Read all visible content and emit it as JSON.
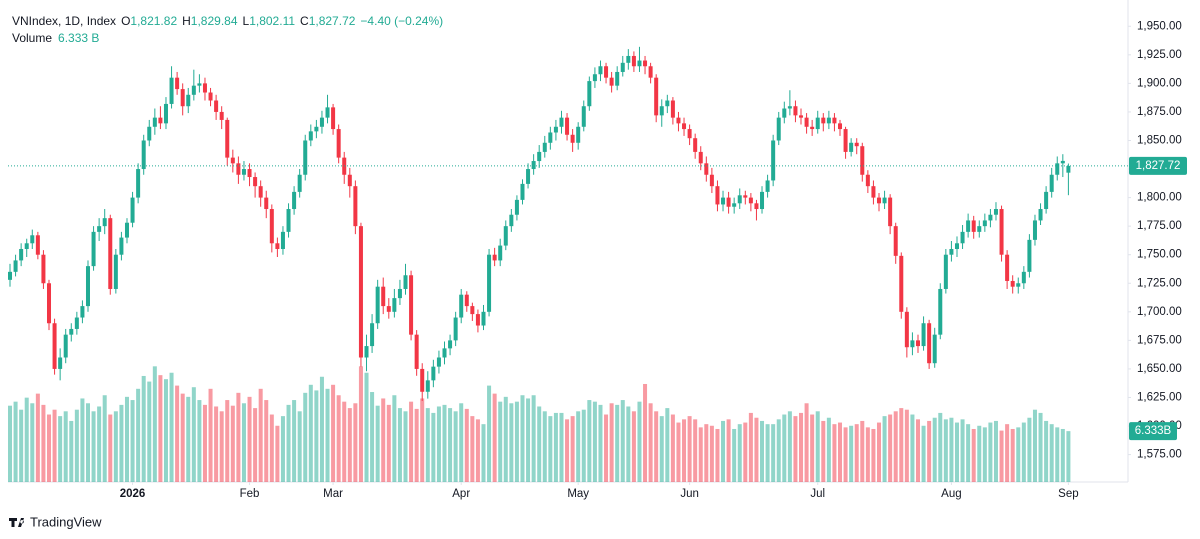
{
  "chart_data": {
    "type": "candlestick",
    "title": "VNIndex, 1D, Index",
    "ohlc_keys": [
      "O",
      "H",
      "L",
      "C"
    ],
    "last_labels": [
      "1,821.82",
      "1,829.84",
      "1,802.11",
      "1,827.72"
    ],
    "change_label": "−4.40 (−0.24%)",
    "volume_title": "Volume",
    "volume_value_label": "6.333 B",
    "price_badge": "1,827.72",
    "volume_badge": "6.333B",
    "brand": "TradingView",
    "up_color": "#22ab94",
    "down_color": "#f23645",
    "grid": false,
    "ylim": [
      1551,
      1973
    ],
    "yticks": [
      {
        "value": 1575,
        "label": "1,575.00"
      },
      {
        "value": 1600,
        "label": "1,600.00"
      },
      {
        "value": 1625,
        "label": "1,625.00"
      },
      {
        "value": 1650,
        "label": "1,650.00"
      },
      {
        "value": 1675,
        "label": "1,675.00"
      },
      {
        "value": 1700,
        "label": "1,700.00"
      },
      {
        "value": 1725,
        "label": "1,725.00"
      },
      {
        "value": 1750,
        "label": "1,750.00"
      },
      {
        "value": 1775,
        "label": "1,775.00"
      },
      {
        "value": 1800,
        "label": "1,800.00"
      },
      {
        "value": 1825,
        "label": "1,825.00"
      },
      {
        "value": 1850,
        "label": "1,850.00"
      },
      {
        "value": 1875,
        "label": "1,875.00"
      },
      {
        "value": 1900,
        "label": "1,900.00"
      },
      {
        "value": 1925,
        "label": "1,925.00"
      },
      {
        "value": 1950,
        "label": "1,950.00"
      }
    ],
    "xlim": [
      -0.36,
      200.7
    ],
    "xticks": [
      {
        "value": 22,
        "label": "2026"
      },
      {
        "value": 43,
        "label": "Feb"
      },
      {
        "value": 58,
        "label": "Mar"
      },
      {
        "value": 81,
        "label": "Apr"
      },
      {
        "value": 102,
        "label": "May"
      },
      {
        "value": 122,
        "label": "Jun"
      },
      {
        "value": 145,
        "label": "Jul"
      },
      {
        "value": 169,
        "label": "Aug"
      },
      {
        "value": 190,
        "label": "Sep"
      }
    ],
    "volume_lim": [
      0,
      60
    ],
    "candles": [
      [
        1728,
        1742,
        1722,
        1735
      ],
      [
        1735,
        1750,
        1731,
        1745
      ],
      [
        1745,
        1760,
        1740,
        1755
      ],
      [
        1755,
        1764,
        1748,
        1760
      ],
      [
        1760,
        1772,
        1755,
        1767
      ],
      [
        1767,
        1770,
        1746,
        1750
      ],
      [
        1750,
        1754,
        1720,
        1725
      ],
      [
        1725,
        1728,
        1684,
        1690
      ],
      [
        1690,
        1694,
        1645,
        1650
      ],
      [
        1650,
        1668,
        1640,
        1660
      ],
      [
        1660,
        1685,
        1655,
        1680
      ],
      [
        1680,
        1690,
        1674,
        1685
      ],
      [
        1685,
        1700,
        1680,
        1695
      ],
      [
        1695,
        1710,
        1690,
        1705
      ],
      [
        1705,
        1745,
        1700,
        1740
      ],
      [
        1740,
        1775,
        1736,
        1770
      ],
      [
        1770,
        1782,
        1762,
        1775
      ],
      [
        1775,
        1790,
        1768,
        1782
      ],
      [
        1782,
        1785,
        1715,
        1720
      ],
      [
        1720,
        1755,
        1716,
        1750
      ],
      [
        1750,
        1770,
        1745,
        1765
      ],
      [
        1765,
        1782,
        1760,
        1778
      ],
      [
        1778,
        1805,
        1774,
        1800
      ],
      [
        1800,
        1830,
        1795,
        1825
      ],
      [
        1825,
        1855,
        1820,
        1850
      ],
      [
        1850,
        1868,
        1845,
        1862
      ],
      [
        1862,
        1878,
        1855,
        1870
      ],
      [
        1870,
        1880,
        1860,
        1865
      ],
      [
        1865,
        1888,
        1860,
        1882
      ],
      [
        1882,
        1915,
        1878,
        1905
      ],
      [
        1905,
        1910,
        1890,
        1895
      ],
      [
        1895,
        1900,
        1872,
        1880
      ],
      [
        1880,
        1896,
        1874,
        1890
      ],
      [
        1890,
        1912,
        1885,
        1898
      ],
      [
        1898,
        1908,
        1892,
        1900
      ],
      [
        1900,
        1905,
        1885,
        1892
      ],
      [
        1892,
        1896,
        1880,
        1885
      ],
      [
        1885,
        1890,
        1868,
        1875
      ],
      [
        1875,
        1880,
        1860,
        1868
      ],
      [
        1868,
        1870,
        1828,
        1835
      ],
      [
        1835,
        1842,
        1822,
        1830
      ],
      [
        1830,
        1836,
        1812,
        1820
      ],
      [
        1820,
        1832,
        1815,
        1825
      ],
      [
        1825,
        1830,
        1810,
        1818
      ],
      [
        1818,
        1822,
        1800,
        1810
      ],
      [
        1810,
        1815,
        1792,
        1800
      ],
      [
        1800,
        1806,
        1782,
        1790
      ],
      [
        1790,
        1794,
        1752,
        1760
      ],
      [
        1760,
        1765,
        1748,
        1755
      ],
      [
        1755,
        1775,
        1750,
        1770
      ],
      [
        1770,
        1795,
        1765,
        1790
      ],
      [
        1790,
        1810,
        1785,
        1805
      ],
      [
        1805,
        1825,
        1800,
        1820
      ],
      [
        1820,
        1855,
        1815,
        1850
      ],
      [
        1850,
        1864,
        1845,
        1858
      ],
      [
        1858,
        1868,
        1852,
        1862
      ],
      [
        1862,
        1876,
        1856,
        1870
      ],
      [
        1870,
        1890,
        1865,
        1879
      ],
      [
        1879,
        1882,
        1855,
        1860
      ],
      [
        1860,
        1864,
        1830,
        1835
      ],
      [
        1835,
        1840,
        1812,
        1820
      ],
      [
        1820,
        1826,
        1800,
        1810
      ],
      [
        1810,
        1815,
        1768,
        1775
      ],
      [
        1775,
        1778,
        1652,
        1660
      ],
      [
        1660,
        1680,
        1648,
        1670
      ],
      [
        1670,
        1698,
        1664,
        1690
      ],
      [
        1690,
        1728,
        1685,
        1722
      ],
      [
        1722,
        1730,
        1698,
        1705
      ],
      [
        1705,
        1712,
        1694,
        1700
      ],
      [
        1700,
        1720,
        1695,
        1712
      ],
      [
        1712,
        1728,
        1706,
        1720
      ],
      [
        1720,
        1742,
        1715,
        1732
      ],
      [
        1732,
        1736,
        1675,
        1680
      ],
      [
        1680,
        1684,
        1644,
        1650
      ],
      [
        1650,
        1655,
        1622,
        1630
      ],
      [
        1630,
        1648,
        1624,
        1640
      ],
      [
        1640,
        1658,
        1634,
        1652
      ],
      [
        1652,
        1666,
        1646,
        1660
      ],
      [
        1660,
        1674,
        1654,
        1668
      ],
      [
        1668,
        1680,
        1662,
        1675
      ],
      [
        1675,
        1700,
        1670,
        1695
      ],
      [
        1695,
        1720,
        1690,
        1715
      ],
      [
        1715,
        1718,
        1700,
        1705
      ],
      [
        1705,
        1708,
        1692,
        1698
      ],
      [
        1698,
        1702,
        1682,
        1688
      ],
      [
        1688,
        1706,
        1684,
        1700
      ],
      [
        1700,
        1755,
        1696,
        1750
      ],
      [
        1750,
        1756,
        1740,
        1745
      ],
      [
        1745,
        1764,
        1740,
        1758
      ],
      [
        1758,
        1780,
        1754,
        1775
      ],
      [
        1775,
        1790,
        1770,
        1785
      ],
      [
        1785,
        1802,
        1780,
        1798
      ],
      [
        1798,
        1816,
        1794,
        1812
      ],
      [
        1812,
        1830,
        1808,
        1825
      ],
      [
        1825,
        1838,
        1820,
        1832
      ],
      [
        1832,
        1846,
        1826,
        1840
      ],
      [
        1840,
        1854,
        1835,
        1848
      ],
      [
        1848,
        1862,
        1842,
        1857
      ],
      [
        1857,
        1868,
        1850,
        1862
      ],
      [
        1862,
        1876,
        1856,
        1870
      ],
      [
        1870,
        1874,
        1850,
        1855
      ],
      [
        1855,
        1860,
        1840,
        1848
      ],
      [
        1848,
        1866,
        1842,
        1862
      ],
      [
        1862,
        1885,
        1858,
        1880
      ],
      [
        1880,
        1906,
        1876,
        1902
      ],
      [
        1902,
        1914,
        1896,
        1908
      ],
      [
        1908,
        1920,
        1902,
        1915
      ],
      [
        1915,
        1918,
        1900,
        1905
      ],
      [
        1905,
        1910,
        1892,
        1898
      ],
      [
        1898,
        1915,
        1894,
        1910
      ],
      [
        1910,
        1924,
        1906,
        1918
      ],
      [
        1918,
        1930,
        1912,
        1924
      ],
      [
        1924,
        1928,
        1910,
        1915
      ],
      [
        1915,
        1932,
        1910,
        1920
      ],
      [
        1920,
        1924,
        1908,
        1915
      ],
      [
        1915,
        1918,
        1900,
        1905
      ],
      [
        1905,
        1908,
        1866,
        1872
      ],
      [
        1872,
        1886,
        1862,
        1880
      ],
      [
        1880,
        1890,
        1874,
        1885
      ],
      [
        1885,
        1888,
        1864,
        1870
      ],
      [
        1870,
        1875,
        1858,
        1865
      ],
      [
        1865,
        1870,
        1854,
        1860
      ],
      [
        1860,
        1864,
        1846,
        1852
      ],
      [
        1852,
        1856,
        1834,
        1840
      ],
      [
        1840,
        1845,
        1824,
        1830
      ],
      [
        1830,
        1836,
        1814,
        1820
      ],
      [
        1820,
        1826,
        1804,
        1810
      ],
      [
        1810,
        1815,
        1788,
        1794
      ],
      [
        1794,
        1806,
        1788,
        1800
      ],
      [
        1800,
        1805,
        1786,
        1792
      ],
      [
        1792,
        1800,
        1786,
        1795
      ],
      [
        1795,
        1808,
        1790,
        1802
      ],
      [
        1802,
        1806,
        1794,
        1800
      ],
      [
        1800,
        1804,
        1788,
        1795
      ],
      [
        1795,
        1798,
        1780,
        1790
      ],
      [
        1790,
        1810,
        1786,
        1805
      ],
      [
        1805,
        1820,
        1800,
        1815
      ],
      [
        1815,
        1855,
        1810,
        1850
      ],
      [
        1850,
        1875,
        1846,
        1870
      ],
      [
        1870,
        1884,
        1865,
        1878
      ],
      [
        1878,
        1894,
        1872,
        1880
      ],
      [
        1880,
        1885,
        1866,
        1872
      ],
      [
        1872,
        1878,
        1864,
        1870
      ],
      [
        1870,
        1874,
        1856,
        1862
      ],
      [
        1862,
        1868,
        1854,
        1860
      ],
      [
        1860,
        1876,
        1856,
        1870
      ],
      [
        1870,
        1874,
        1858,
        1865
      ],
      [
        1865,
        1876,
        1860,
        1870
      ],
      [
        1870,
        1874,
        1858,
        1865
      ],
      [
        1865,
        1868,
        1854,
        1860
      ],
      [
        1860,
        1862,
        1834,
        1840
      ],
      [
        1840,
        1852,
        1836,
        1848
      ],
      [
        1848,
        1852,
        1838,
        1845
      ],
      [
        1845,
        1848,
        1814,
        1820
      ],
      [
        1820,
        1824,
        1804,
        1810
      ],
      [
        1810,
        1815,
        1794,
        1800
      ],
      [
        1800,
        1804,
        1788,
        1795
      ],
      [
        1795,
        1806,
        1790,
        1800
      ],
      [
        1800,
        1803,
        1768,
        1775
      ],
      [
        1775,
        1778,
        1742,
        1749
      ],
      [
        1749,
        1752,
        1694,
        1700
      ],
      [
        1700,
        1704,
        1660,
        1669
      ],
      [
        1669,
        1682,
        1662,
        1675
      ],
      [
        1675,
        1680,
        1664,
        1670
      ],
      [
        1670,
        1696,
        1666,
        1690
      ],
      [
        1690,
        1693,
        1650,
        1655
      ],
      [
        1655,
        1686,
        1651,
        1680
      ],
      [
        1680,
        1725,
        1676,
        1720
      ],
      [
        1720,
        1755,
        1716,
        1750
      ],
      [
        1750,
        1762,
        1744,
        1755
      ],
      [
        1755,
        1766,
        1748,
        1760
      ],
      [
        1760,
        1776,
        1755,
        1770
      ],
      [
        1770,
        1786,
        1765,
        1780
      ],
      [
        1780,
        1784,
        1764,
        1770
      ],
      [
        1770,
        1780,
        1765,
        1775
      ],
      [
        1775,
        1786,
        1770,
        1780
      ],
      [
        1780,
        1790,
        1774,
        1785
      ],
      [
        1785,
        1796,
        1780,
        1790
      ],
      [
        1790,
        1793,
        1744,
        1750
      ],
      [
        1750,
        1754,
        1720,
        1727
      ],
      [
        1727,
        1732,
        1716,
        1722
      ],
      [
        1722,
        1730,
        1716,
        1725
      ],
      [
        1725,
        1740,
        1720,
        1735
      ],
      [
        1735,
        1768,
        1730,
        1763
      ],
      [
        1763,
        1785,
        1758,
        1780
      ],
      [
        1780,
        1795,
        1776,
        1790
      ],
      [
        1790,
        1810,
        1786,
        1805
      ],
      [
        1805,
        1826,
        1800,
        1820
      ],
      [
        1820,
        1836,
        1815,
        1830
      ],
      [
        1830,
        1838,
        1818,
        1832.12
      ],
      [
        1821.82,
        1829.84,
        1802.11,
        1827.72
      ]
    ],
    "volumes": [
      9.5,
      10,
      9,
      10.5,
      9.8,
      11,
      9.6,
      8.4,
      9,
      8.2,
      8.8,
      7.6,
      9,
      10.4,
      9.8,
      8.8,
      9.4,
      10.8,
      8.4,
      8.8,
      9.6,
      10.6,
      10.2,
      11.6,
      13.2,
      12.5,
      14.4,
      13.3,
      12.8,
      13.6,
      12,
      11,
      10.6,
      11.8,
      10.2,
      9.6,
      11.6,
      9.4,
      8.8,
      10.2,
      9.5,
      11.1,
      9.8,
      10.6,
      9.2,
      11.6,
      10.2,
      8.4,
      7,
      8.2,
      9.6,
      10.2,
      8.8,
      11.1,
      12.1,
      11.4,
      13.1,
      11.6,
      12.1,
      10.8,
      10,
      9.2,
      9.8,
      14.4,
      13.6,
      11.2,
      9.5,
      10.4,
      9.6,
      10.8,
      9.2,
      8.8,
      10,
      9.1,
      10.4,
      9.2,
      8.6,
      9.4,
      9.6,
      9.2,
      8.8,
      9.8,
      9.1,
      8.2,
      7.8,
      7.2,
      12,
      11,
      10,
      10.6,
      9.8,
      10,
      10.8,
      10.4,
      10.8,
      9.4,
      8.8,
      8.2,
      8.6,
      8.6,
      7.8,
      8.2,
      8.8,
      9,
      10.2,
      10,
      9.6,
      8.4,
      9.8,
      9.6,
      10.2,
      9.4,
      8.8,
      10,
      12.2,
      9.8,
      8.8,
      8.2,
      9.2,
      8.4,
      7.4,
      7.8,
      8.2,
      7.8,
      6.8,
      7.2,
      7,
      6.6,
      7.6,
      7.8,
      6.6,
      7.2,
      7.4,
      8.6,
      8,
      7.6,
      7.2,
      7.2,
      7.8,
      8.4,
      8.8,
      8.2,
      8.6,
      9.8,
      8.4,
      8.8,
      7.6,
      8,
      7.2,
      7.4,
      6.8,
      7,
      7.2,
      7.6,
      6.8,
      6.6,
      7.4,
      8.2,
      8.4,
      8.8,
      9.2,
      9,
      8.4,
      7.8,
      7,
      7.6,
      8,
      8.6,
      7.8,
      8,
      7.4,
      7.8,
      7.2,
      6.6,
      7,
      6.8,
      7.4,
      7.6,
      6.4,
      7.2,
      6.6,
      6.8,
      7.4,
      8,
      9,
      8.6,
      7.6,
      7.2,
      6.8,
      6.6,
      6.333
    ]
  }
}
